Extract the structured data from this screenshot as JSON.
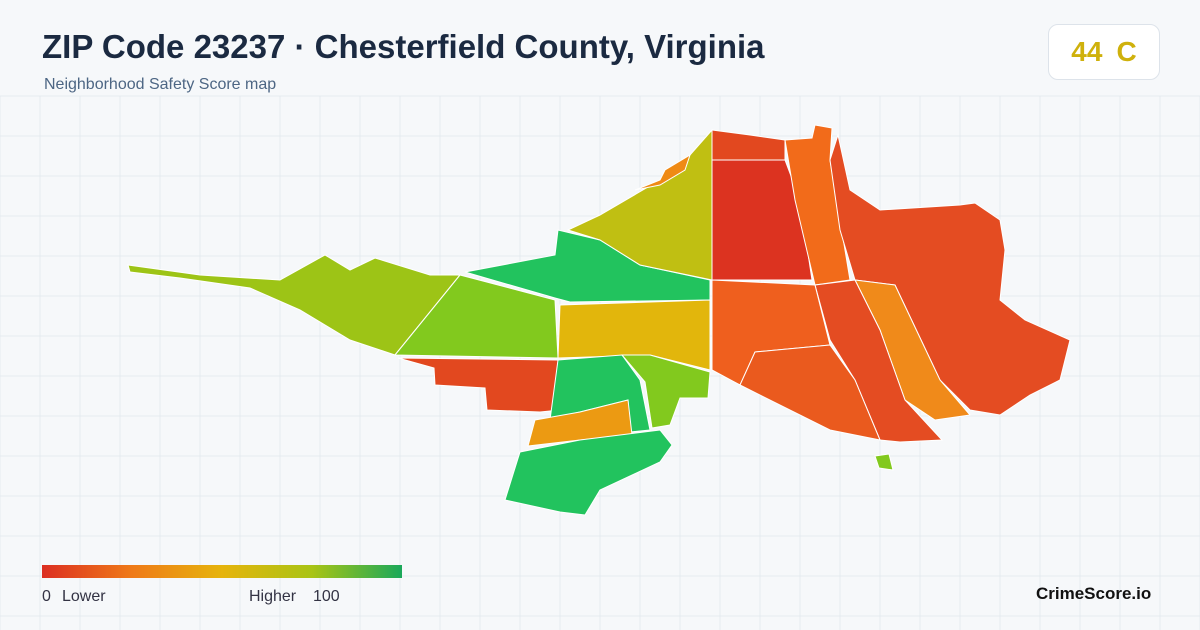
{
  "header": {
    "title": "ZIP Code 23237 · Chesterfield County, Virginia",
    "subtitle": "Neighborhood Safety Score map"
  },
  "score": {
    "value": 44,
    "grade": "C"
  },
  "legend": {
    "min": 0,
    "min_label": "Lower",
    "max_label": "Higher",
    "max": 100
  },
  "brand": "CrimeScore.io"
}
